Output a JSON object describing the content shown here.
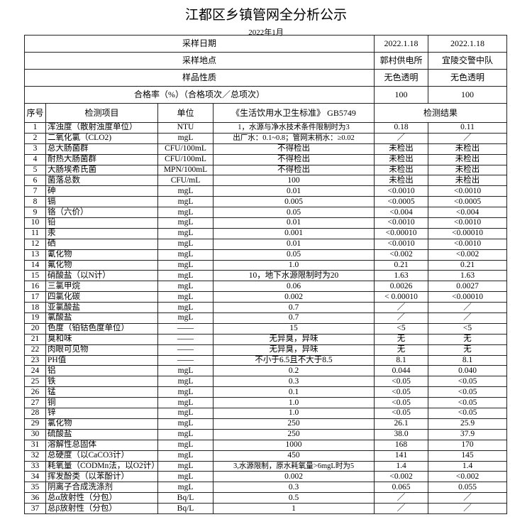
{
  "title": "江都区乡镇管网全分析公示",
  "subtitle": "2022年1月",
  "summary": [
    {
      "label": "采样日期",
      "v1": "2022.1.18",
      "v2": "2022.1.18"
    },
    {
      "label": "采样地点",
      "v1": "郭村供电所",
      "v2": "宜陵交警中队"
    },
    {
      "label": "样品性质",
      "v1": "无色透明",
      "v2": "无色透明"
    },
    {
      "label": "合格率（%）（合格项次／总项次）",
      "v1": "100",
      "v2": "100"
    }
  ],
  "headers": {
    "no": "序号",
    "item": "检测项目",
    "unit": "单位",
    "standard": "《生活饮用水卫生标准》 GB5749",
    "result": "检测结果"
  },
  "rows": [
    [
      "1",
      "浑浊度（散射浊度单位）",
      "NTU",
      "1，水源与净水技术条件限制时为3",
      "0.18",
      "0.11"
    ],
    [
      "2",
      "二氧化氯（CLO2)",
      "mgL",
      "出厂水：0.1~0.8；管网末梢水：≥0.02",
      "／",
      "／"
    ],
    [
      "3",
      "总大肠菌群",
      "CFU/100mL",
      "不得检出",
      "未检出",
      "未检出"
    ],
    [
      "4",
      "耐热大肠菌群",
      "CFU/100mL",
      "不得检出",
      "未检出",
      "未检出"
    ],
    [
      "5",
      "大肠埃希氏菌",
      "MPN/100mL",
      "不得检出",
      "未检出",
      "未检出"
    ],
    [
      "6",
      "菌落总数",
      "CFU/mL",
      "100",
      "未检出",
      "未检出"
    ],
    [
      "7",
      "砷",
      "mgL",
      "0.01",
      "<0.0010",
      "<0.0010"
    ],
    [
      "8",
      "镉",
      "mgL",
      "0.005",
      "<0.0005",
      "<0.0005"
    ],
    [
      "9",
      "铬（六价）",
      "mgL",
      "0.05",
      "<0.004",
      "<0.004"
    ],
    [
      "10",
      "铅",
      "mgL",
      "0.01",
      "<0.0010",
      "<0.0010"
    ],
    [
      "11",
      "汞",
      "mgL",
      "0.001",
      "<0.00010",
      "<0.00010"
    ],
    [
      "12",
      "硒",
      "mgL",
      "0.01",
      "<0.0010",
      "<0.0010"
    ],
    [
      "13",
      "氰化物",
      "mgL",
      "0.05",
      "<0.002",
      "<0.002"
    ],
    [
      "14",
      "氟化物",
      "mgL",
      "1.0",
      "0.21",
      "0.21"
    ],
    [
      "15",
      "硝酸盐（以N计）",
      "mgL",
      "10，地下水源限制时为20",
      "1.63",
      "1.63"
    ],
    [
      "16",
      "三氯甲烷",
      "mgL",
      "0.06",
      "0.0026",
      "0.0027"
    ],
    [
      "17",
      "四氯化碳",
      "mgL",
      "0.002",
      "< 0.00010",
      "<0.00010"
    ],
    [
      "18",
      "亚氯酸盐",
      "mgL",
      "0.7",
      "／",
      "／"
    ],
    [
      "19",
      "氯酸盐",
      "mgL",
      "0.7",
      "／",
      "／"
    ],
    [
      "20",
      "色度（铂钴色度单位）",
      "——",
      "15",
      "<5",
      "<5"
    ],
    [
      "21",
      "臭和味",
      "——",
      "无异臭，异味",
      "无",
      "无"
    ],
    [
      "22",
      "肉眼可见物",
      "——",
      "无异臭，异味",
      "无",
      "无"
    ],
    [
      "23",
      "PH值",
      "——",
      "不小于6.5且不大于8.5",
      "8.1",
      "8.1"
    ],
    [
      "24",
      "铝",
      "mgL",
      "0.2",
      "0.044",
      "0.040"
    ],
    [
      "25",
      "铁",
      "mgL",
      "0.3",
      "<0.05",
      "<0.05"
    ],
    [
      "26",
      "锰",
      "mgL",
      "0.1",
      "<0.05",
      "<0.05"
    ],
    [
      "27",
      "铜",
      "mgL",
      "1.0",
      "<0.05",
      "<0.05"
    ],
    [
      "28",
      "锌",
      "mgL",
      "1.0",
      "<0.05",
      "<0.05"
    ],
    [
      "29",
      "氯化物",
      "mgL",
      "250",
      "26.1",
      "25.9"
    ],
    [
      "30",
      "硫酸盐",
      "mgL",
      "250",
      "38.0",
      "37.9"
    ],
    [
      "31",
      "溶解性总固体",
      "mgL",
      "1000",
      "168",
      "170"
    ],
    [
      "32",
      "总硬度（以CaCO3计）",
      "mgL",
      "450",
      "141",
      "145"
    ],
    [
      "33",
      "耗氧量（CODMn法，以O2计）",
      "mgL",
      "3,水源限制，原水耗氧量>6mgL时为5",
      "1.4",
      "1.4"
    ],
    [
      "34",
      "挥发酚类（以苯酚计）",
      "mgL",
      "0.002",
      "<0.002",
      "<0.002"
    ],
    [
      "35",
      "阴离子合成洗涤剂",
      "mgL",
      "0.3",
      "0.065",
      "0.055"
    ],
    [
      "36",
      "总α放射性（分包）",
      "Bq/L",
      "0.5",
      "／",
      "／"
    ],
    [
      "37",
      "总β放射性（分包）",
      "Bq/L",
      "1",
      "／",
      "／"
    ]
  ]
}
